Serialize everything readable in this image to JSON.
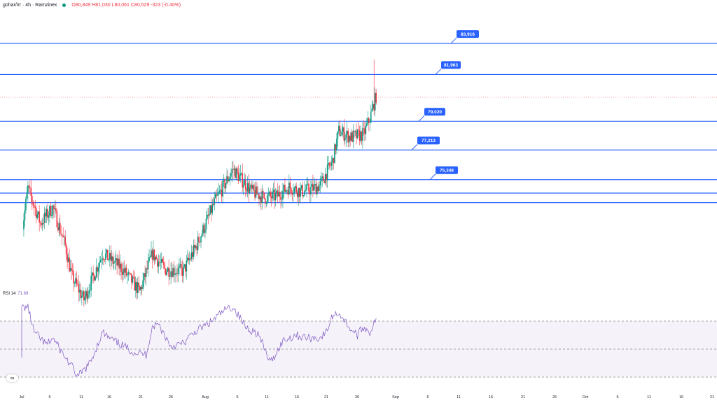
{
  "header": {
    "symbol": "gohar/irr · 4h · Ramzinex",
    "ohlc": "O80,849 H81,030 L80,061 C80,529 -323 (-0.40%)"
  },
  "rsi_panel": {
    "label": "RSI 14",
    "value": "71.69"
  },
  "logo": {
    "icon": "tradingview-logo-icon"
  },
  "colors": {
    "up": "#089981",
    "down": "#f23645",
    "level_line": "#2962ff",
    "label_bg": "#2962ff",
    "rsi": "#7e57c2"
  },
  "chart_data": [
    {
      "type": "candlestick",
      "title": "gohar/irr · 4h · Ramzinex",
      "x_ticks": [
        "Jul",
        "6",
        "11",
        "16",
        "21",
        "26",
        "Aug",
        "6",
        "11",
        "16",
        "21",
        "26",
        "Sep",
        "6",
        "11",
        "16",
        "21",
        "26",
        "Oct",
        "6",
        "11",
        "16",
        "21"
      ],
      "levels": [
        83916,
        81963,
        79020,
        77213,
        75348
      ],
      "level_labels": [
        "83,916",
        "81,963",
        "79,020",
        "77,213",
        "75,348"
      ],
      "unlabeled_levels": [
        74500,
        73900
      ],
      "current_price": 80529,
      "price_path": [
        [
          "Jun 30",
          66800
        ],
        [
          "Jul 1",
          72000
        ],
        [
          "Jul 2",
          74800
        ],
        [
          "Jul 4",
          72600
        ],
        [
          "Jul 6",
          73600
        ],
        [
          "Jul 8",
          71200
        ],
        [
          "Jul 9",
          69300
        ],
        [
          "Jul 11",
          67800
        ],
        [
          "Jul 14",
          70700
        ],
        [
          "Jul 17",
          69800
        ],
        [
          "Jul 20",
          68300
        ],
        [
          "Jul 22",
          70700
        ],
        [
          "Jul 24",
          69700
        ],
        [
          "Jul 27",
          69600
        ],
        [
          "Jul 29",
          71100
        ],
        [
          "Aug 1",
          73900
        ],
        [
          "Aug 4",
          76000
        ],
        [
          "Aug 5",
          75500
        ],
        [
          "Aug 7",
          74600
        ],
        [
          "Aug 9",
          74200
        ],
        [
          "Aug 11",
          74300
        ],
        [
          "Aug 13",
          74900
        ],
        [
          "Aug 15",
          74600
        ],
        [
          "Aug 17",
          74800
        ],
        [
          "Aug 18",
          75000
        ],
        [
          "Aug 20",
          76500
        ],
        [
          "Aug 21",
          78400
        ],
        [
          "Aug 23",
          78000
        ],
        [
          "Aug 25",
          78200
        ],
        [
          "Aug 26",
          79200
        ],
        [
          "Aug 27",
          80600
        ]
      ],
      "period_high": 82900,
      "period_low": 68200
    },
    {
      "type": "line",
      "title": "RSI 14",
      "bands": [
        70,
        50,
        30
      ],
      "y_range": [
        20,
        85
      ],
      "last_value": 71.69,
      "values": [
        [
          "Jun 30",
          47
        ],
        [
          "Jul 1",
          80
        ],
        [
          "Jul 2",
          80
        ],
        [
          "Jul 3",
          62
        ],
        [
          "Jul 5",
          53
        ],
        [
          "Jul 6",
          58
        ],
        [
          "Jul 8",
          44
        ],
        [
          "Jul 9",
          38
        ],
        [
          "Jul 10",
          30
        ],
        [
          "Jul 12",
          40
        ],
        [
          "Jul 14",
          62
        ],
        [
          "Jul 15",
          58
        ],
        [
          "Jul 17",
          53
        ],
        [
          "Jul 19",
          48
        ],
        [
          "Jul 21",
          46
        ],
        [
          "Jul 22",
          66
        ],
        [
          "Jul 23",
          68
        ],
        [
          "Jul 25",
          52
        ],
        [
          "Jul 27",
          54
        ],
        [
          "Jul 29",
          63
        ],
        [
          "Jul 31",
          68
        ],
        [
          "Aug 3",
          79
        ],
        [
          "Aug 4",
          80
        ],
        [
          "Aug 6",
          66
        ],
        [
          "Aug 8",
          61
        ],
        [
          "Aug 10",
          40
        ],
        [
          "Aug 12",
          56
        ],
        [
          "Aug 14",
          60
        ],
        [
          "Aug 16",
          58
        ],
        [
          "Aug 18",
          58
        ],
        [
          "Aug 19",
          62
        ],
        [
          "Aug 20",
          74
        ],
        [
          "Aug 21",
          76
        ],
        [
          "Aug 23",
          64
        ],
        [
          "Aug 24",
          60
        ],
        [
          "Aug 25",
          66
        ],
        [
          "Aug 26",
          62
        ],
        [
          "Aug 27",
          72
        ]
      ]
    }
  ]
}
